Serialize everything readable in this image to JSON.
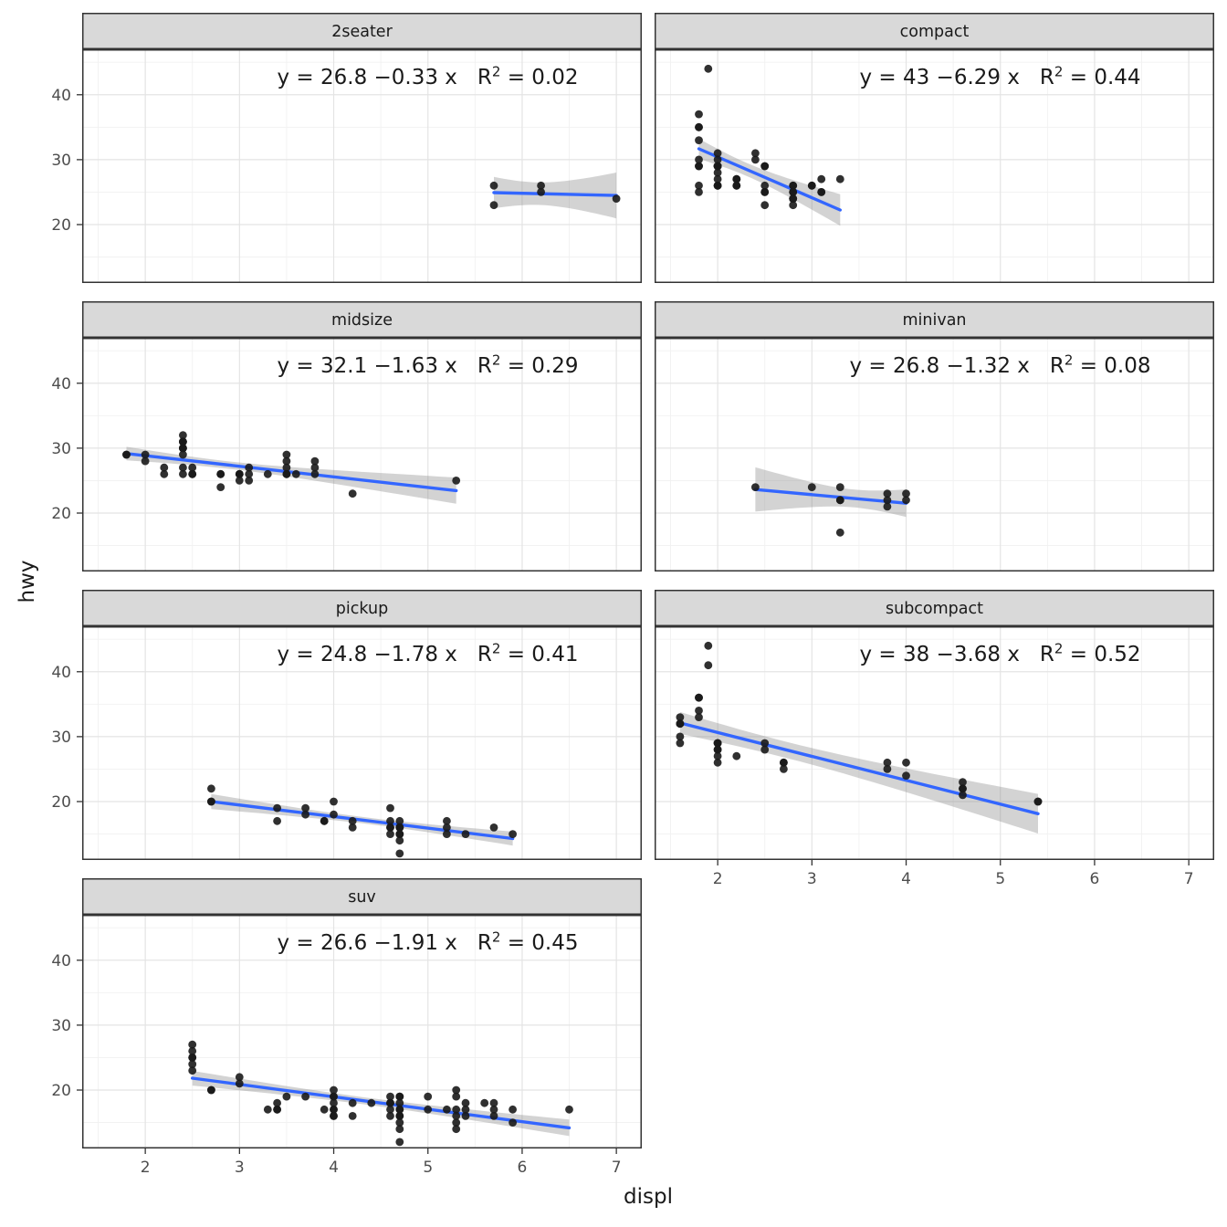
{
  "chart_data": {
    "type": "scatter",
    "title": "",
    "xlabel": "displ",
    "ylabel": "hwy",
    "x_range": [
      1.33,
      7.27
    ],
    "y_range": [
      11,
      47
    ],
    "x_ticks": [
      2,
      3,
      4,
      5,
      6,
      7
    ],
    "y_ticks": [
      20,
      30,
      40
    ],
    "x_minor": [
      1.5,
      2.5,
      3.5,
      4.5,
      5.5,
      6.5
    ],
    "y_minor": [
      15,
      25,
      35,
      45
    ],
    "legend": "none",
    "grid": "on",
    "colors": {
      "line": "#3366FF",
      "band": "#808080",
      "point": "#1a1a1a",
      "strip_bg": "#d9d9d9",
      "grid_major": "#e4e4e4",
      "grid_minor": "#f1f1f1",
      "panel_border": "#333333",
      "tick_label": "#4d4d4d"
    },
    "facets": [
      {
        "label": "2seater",
        "row": 0,
        "col": 0,
        "show_y": true,
        "show_x": false,
        "annotation": "y = 26.8 −0.33 x   R² = 0.02",
        "fit": {
          "intercept": 26.8,
          "slope": -0.33
        },
        "r2": 0.02,
        "points": [
          [
            5.7,
            26
          ],
          [
            5.7,
            23
          ],
          [
            6.2,
            26
          ],
          [
            6.2,
            25
          ],
          [
            7.0,
            24
          ]
        ]
      },
      {
        "label": "compact",
        "row": 0,
        "col": 1,
        "show_y": false,
        "show_x": false,
        "annotation": "y = 43 −6.29 x   R² = 0.44",
        "fit": {
          "intercept": 43,
          "slope": -6.29
        },
        "r2": 0.44,
        "points": [
          [
            1.8,
            29
          ],
          [
            1.8,
            29
          ],
          [
            2.0,
            31
          ],
          [
            2.0,
            30
          ],
          [
            2.8,
            26
          ],
          [
            2.8,
            26
          ],
          [
            3.1,
            27
          ],
          [
            1.8,
            26
          ],
          [
            1.8,
            25
          ],
          [
            2.0,
            28
          ],
          [
            2.0,
            27
          ],
          [
            2.8,
            25
          ],
          [
            2.8,
            25
          ],
          [
            3.1,
            25
          ],
          [
            3.1,
            25
          ],
          [
            2.2,
            26
          ],
          [
            2.2,
            27
          ],
          [
            2.5,
            25
          ],
          [
            2.5,
            25
          ],
          [
            2.5,
            26
          ],
          [
            2.5,
            23
          ],
          [
            2.2,
            26
          ],
          [
            2.2,
            27
          ],
          [
            2.4,
            30
          ],
          [
            2.4,
            31
          ],
          [
            3.0,
            26
          ],
          [
            3.0,
            26
          ],
          [
            3.3,
            27
          ],
          [
            1.8,
            30
          ],
          [
            1.8,
            33
          ],
          [
            1.8,
            35
          ],
          [
            1.8,
            37
          ],
          [
            1.8,
            35
          ],
          [
            2.0,
            29
          ],
          [
            2.0,
            26
          ],
          [
            2.0,
            29
          ],
          [
            2.0,
            26
          ],
          [
            2.8,
            24
          ],
          [
            1.9,
            44
          ],
          [
            2.0,
            29
          ],
          [
            2.0,
            26
          ],
          [
            2.0,
            29
          ],
          [
            2.0,
            29
          ],
          [
            2.5,
            29
          ],
          [
            2.5,
            29
          ],
          [
            2.8,
            23
          ],
          [
            2.8,
            24
          ]
        ]
      },
      {
        "label": "midsize",
        "row": 1,
        "col": 0,
        "show_y": true,
        "show_x": false,
        "annotation": "y = 32.1 −1.63 x   R² = 0.29",
        "fit": {
          "intercept": 32.1,
          "slope": -1.63
        },
        "r2": 0.29,
        "points": [
          [
            2.8,
            24
          ],
          [
            3.1,
            25
          ],
          [
            4.2,
            23
          ],
          [
            2.4,
            30
          ],
          [
            2.4,
            29
          ],
          [
            3.1,
            27
          ],
          [
            3.5,
            29
          ],
          [
            3.6,
            26
          ],
          [
            2.4,
            26
          ],
          [
            2.4,
            27
          ],
          [
            2.4,
            30
          ],
          [
            2.4,
            31
          ],
          [
            2.5,
            26
          ],
          [
            3.3,
            26
          ],
          [
            2.4,
            31
          ],
          [
            2.4,
            32
          ],
          [
            2.5,
            27
          ],
          [
            2.5,
            26
          ],
          [
            3.5,
            26
          ],
          [
            3.5,
            27
          ],
          [
            3.0,
            26
          ],
          [
            3.0,
            25
          ],
          [
            3.5,
            26
          ],
          [
            3.1,
            26
          ],
          [
            3.8,
            27
          ],
          [
            3.8,
            28
          ],
          [
            3.8,
            26
          ],
          [
            5.3,
            25
          ],
          [
            2.2,
            26
          ],
          [
            2.2,
            27
          ],
          [
            2.4,
            30
          ],
          [
            2.4,
            31
          ],
          [
            3.0,
            26
          ],
          [
            3.0,
            26
          ],
          [
            3.5,
            28
          ],
          [
            1.8,
            29
          ],
          [
            1.8,
            29
          ],
          [
            2.0,
            28
          ],
          [
            2.0,
            29
          ],
          [
            2.8,
            26
          ],
          [
            2.8,
            26
          ]
        ]
      },
      {
        "label": "minivan",
        "row": 1,
        "col": 1,
        "show_y": false,
        "show_x": false,
        "annotation": "y = 26.8 −1.32 x   R² = 0.08",
        "fit": {
          "intercept": 26.8,
          "slope": -1.32
        },
        "r2": 0.08,
        "points": [
          [
            2.4,
            24
          ],
          [
            3.0,
            24
          ],
          [
            3.3,
            22
          ],
          [
            3.3,
            22
          ],
          [
            3.3,
            24
          ],
          [
            3.3,
            17
          ],
          [
            3.8,
            22
          ],
          [
            3.8,
            21
          ],
          [
            3.8,
            23
          ],
          [
            4.0,
            23
          ],
          [
            4.0,
            22
          ]
        ]
      },
      {
        "label": "pickup",
        "row": 2,
        "col": 0,
        "show_y": true,
        "show_x": false,
        "annotation": "y = 24.8 −1.78 x   R² = 0.41",
        "fit": {
          "intercept": 24.8,
          "slope": -1.78
        },
        "r2": 0.41,
        "points": [
          [
            3.7,
            19
          ],
          [
            3.7,
            18
          ],
          [
            3.9,
            17
          ],
          [
            3.9,
            17
          ],
          [
            4.7,
            16
          ],
          [
            4.7,
            16
          ],
          [
            4.7,
            15
          ],
          [
            5.2,
            17
          ],
          [
            5.2,
            15
          ],
          [
            4.7,
            16
          ],
          [
            4.7,
            17
          ],
          [
            4.7,
            15
          ],
          [
            4.7,
            12
          ],
          [
            4.7,
            16
          ],
          [
            4.7,
            14
          ],
          [
            5.2,
            16
          ],
          [
            5.7,
            16
          ],
          [
            5.9,
            15
          ],
          [
            4.2,
            17
          ],
          [
            4.2,
            16
          ],
          [
            4.6,
            16
          ],
          [
            4.6,
            15
          ],
          [
            4.6,
            16
          ],
          [
            4.6,
            17
          ],
          [
            5.4,
            15
          ],
          [
            2.7,
            20
          ],
          [
            2.7,
            22
          ],
          [
            2.7,
            20
          ],
          [
            3.4,
            17
          ],
          [
            3.4,
            19
          ],
          [
            4.0,
            18
          ],
          [
            4.0,
            20
          ],
          [
            4.6,
            19
          ]
        ]
      },
      {
        "label": "subcompact",
        "row": 2,
        "col": 1,
        "show_y": false,
        "show_x": true,
        "annotation": "y = 38 −3.68 x   R² = 0.52",
        "fit": {
          "intercept": 38,
          "slope": -3.68
        },
        "r2": 0.52,
        "points": [
          [
            1.6,
            33
          ],
          [
            1.6,
            32
          ],
          [
            1.6,
            32
          ],
          [
            1.6,
            29
          ],
          [
            1.6,
            32
          ],
          [
            1.6,
            30
          ],
          [
            1.8,
            34
          ],
          [
            1.8,
            36
          ],
          [
            1.8,
            36
          ],
          [
            1.8,
            33
          ],
          [
            1.9,
            44
          ],
          [
            1.9,
            41
          ],
          [
            2.0,
            29
          ],
          [
            2.0,
            29
          ],
          [
            2.0,
            29
          ],
          [
            2.0,
            28
          ],
          [
            2.0,
            27
          ],
          [
            2.0,
            26
          ],
          [
            2.0,
            28
          ],
          [
            2.2,
            27
          ],
          [
            2.5,
            28
          ],
          [
            2.5,
            29
          ],
          [
            2.7,
            26
          ],
          [
            2.7,
            26
          ],
          [
            2.7,
            25
          ],
          [
            3.8,
            26
          ],
          [
            3.8,
            25
          ],
          [
            4.0,
            26
          ],
          [
            4.0,
            24
          ],
          [
            4.6,
            23
          ],
          [
            4.6,
            22
          ],
          [
            4.6,
            22
          ],
          [
            4.6,
            21
          ],
          [
            5.4,
            20
          ],
          [
            5.4,
            20
          ]
        ]
      },
      {
        "label": "suv",
        "row": 3,
        "col": 0,
        "show_y": true,
        "show_x": true,
        "annotation": "y = 26.6 −1.91 x   R² = 0.45",
        "fit": {
          "intercept": 26.6,
          "slope": -1.91
        },
        "r2": 0.45,
        "points": [
          [
            2.5,
            27
          ],
          [
            2.5,
            26
          ],
          [
            2.5,
            25
          ],
          [
            2.5,
            25
          ],
          [
            2.5,
            24
          ],
          [
            2.5,
            23
          ],
          [
            2.7,
            20
          ],
          [
            2.7,
            20
          ],
          [
            3.0,
            22
          ],
          [
            3.0,
            21
          ],
          [
            3.3,
            17
          ],
          [
            3.4,
            17
          ],
          [
            3.4,
            17
          ],
          [
            3.4,
            18
          ],
          [
            3.5,
            19
          ],
          [
            3.7,
            19
          ],
          [
            3.9,
            17
          ],
          [
            4.0,
            20
          ],
          [
            4.0,
            19
          ],
          [
            4.0,
            19
          ],
          [
            4.0,
            18
          ],
          [
            4.0,
            17
          ],
          [
            4.0,
            17
          ],
          [
            4.0,
            16
          ],
          [
            4.0,
            16
          ],
          [
            4.2,
            18
          ],
          [
            4.2,
            16
          ],
          [
            4.4,
            18
          ],
          [
            4.6,
            19
          ],
          [
            4.6,
            18
          ],
          [
            4.6,
            18
          ],
          [
            4.6,
            17
          ],
          [
            4.6,
            16
          ],
          [
            4.7,
            19
          ],
          [
            4.7,
            19
          ],
          [
            4.7,
            18
          ],
          [
            4.7,
            17
          ],
          [
            4.7,
            17
          ],
          [
            4.7,
            16
          ],
          [
            4.7,
            16
          ],
          [
            4.7,
            15
          ],
          [
            4.7,
            14
          ],
          [
            4.7,
            12
          ],
          [
            5.0,
            19
          ],
          [
            5.0,
            17
          ],
          [
            5.2,
            17
          ],
          [
            5.3,
            20
          ],
          [
            5.3,
            19
          ],
          [
            5.3,
            17
          ],
          [
            5.3,
            16
          ],
          [
            5.3,
            15
          ],
          [
            5.3,
            14
          ],
          [
            5.4,
            18
          ],
          [
            5.4,
            17
          ],
          [
            5.4,
            16
          ],
          [
            5.6,
            18
          ],
          [
            5.7,
            18
          ],
          [
            5.7,
            17
          ],
          [
            5.7,
            16
          ],
          [
            5.9,
            17
          ],
          [
            5.9,
            15
          ],
          [
            6.5,
            17
          ]
        ]
      }
    ]
  }
}
